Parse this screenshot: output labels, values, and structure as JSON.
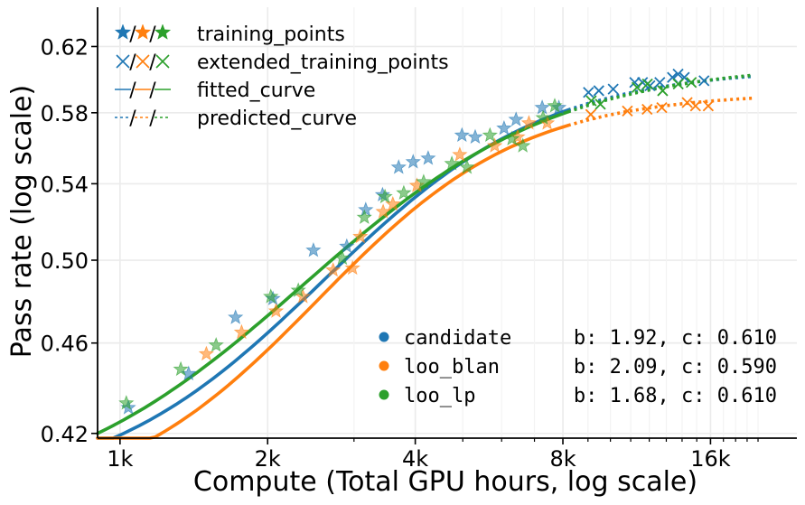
{
  "chart_data": {
    "type": "scatter",
    "xlabel": "Compute (Total GPU hours, log scale)",
    "ylabel": "Pass rate (log scale)",
    "xscale": "log",
    "yscale": "log",
    "xlim": [
      900,
      24000
    ],
    "ylim": [
      0.418,
      0.645
    ],
    "x_ticks": [
      {
        "value": 1000,
        "label": "1k"
      },
      {
        "value": 2000,
        "label": "2k"
      },
      {
        "value": 4000,
        "label": "4k"
      },
      {
        "value": 8000,
        "label": "8k"
      },
      {
        "value": 16000,
        "label": "16k"
      }
    ],
    "y_ticks": [
      {
        "value": 0.42,
        "label": "0.42"
      },
      {
        "value": 0.46,
        "label": "0.46"
      },
      {
        "value": 0.5,
        "label": "0.50"
      },
      {
        "value": 0.54,
        "label": "0.54"
      },
      {
        "value": 0.58,
        "label": "0.58"
      },
      {
        "value": 0.62,
        "label": "0.62"
      }
    ],
    "grid": true,
    "legend_marker_key": {
      "position": "top-left",
      "entries": [
        {
          "label": "training_points",
          "marker": "star"
        },
        {
          "label": "extended_training_points",
          "marker": "x"
        },
        {
          "label": "fitted_curve",
          "marker": "solid-line"
        },
        {
          "label": "predicted_curve",
          "marker": "dashed-line"
        }
      ]
    },
    "legend_series_position": "bottom-right",
    "series": [
      {
        "name": "candidate",
        "fit_params": "b: 1.92, c: 0.610",
        "color": "#1f77b4",
        "training_points": [
          [
            1040,
            0.431
          ],
          [
            1380,
            0.446
          ],
          [
            1720,
            0.472
          ],
          [
            2050,
            0.481
          ],
          [
            2480,
            0.505
          ],
          [
            2900,
            0.507
          ],
          [
            3170,
            0.526
          ],
          [
            3430,
            0.534
          ],
          [
            3700,
            0.549
          ],
          [
            3960,
            0.552
          ],
          [
            4250,
            0.554
          ],
          [
            4980,
            0.567
          ],
          [
            5300,
            0.566
          ],
          [
            6070,
            0.571
          ],
          [
            6420,
            0.576
          ],
          [
            7260,
            0.583
          ],
          [
            7850,
            0.583
          ]
        ],
        "extended_training_points": [
          [
            9020,
            0.592
          ],
          [
            9470,
            0.593
          ],
          [
            10130,
            0.594
          ],
          [
            11210,
            0.598
          ],
          [
            11630,
            0.598
          ],
          [
            12040,
            0.596
          ],
          [
            12610,
            0.598
          ],
          [
            13380,
            0.601
          ],
          [
            13740,
            0.603
          ],
          [
            14150,
            0.601
          ],
          [
            15520,
            0.599
          ]
        ],
        "fitted_curve_x": [
          900,
          8200
        ],
        "predicted_curve_x": [
          8200,
          19500
        ]
      },
      {
        "name": "loo_blan",
        "fit_params": "b: 2.09, c: 0.590",
        "color": "#ff7f0e",
        "training_points": [
          [
            1500,
            0.455
          ],
          [
            1770,
            0.465
          ],
          [
            2080,
            0.475
          ],
          [
            2360,
            0.482
          ],
          [
            2720,
            0.495
          ],
          [
            2980,
            0.496
          ],
          [
            3090,
            0.512
          ],
          [
            3440,
            0.525
          ],
          [
            3600,
            0.529
          ],
          [
            4030,
            0.539
          ],
          [
            4930,
            0.556
          ],
          [
            5810,
            0.561
          ],
          [
            6470,
            0.566
          ],
          [
            6820,
            0.574
          ],
          [
            7430,
            0.574
          ]
        ],
        "extended_training_points": [
          [
            9120,
            0.579
          ],
          [
            10830,
            0.581
          ],
          [
            11880,
            0.582
          ],
          [
            12730,
            0.583
          ],
          [
            14340,
            0.586
          ],
          [
            14910,
            0.584
          ],
          [
            15830,
            0.584
          ]
        ],
        "fitted_curve_x": [
          900,
          8200
        ],
        "predicted_curve_x": [
          8200,
          19500
        ]
      },
      {
        "name": "loo_lp",
        "fit_params": "b: 1.68, c: 0.610",
        "color": "#2ca02c",
        "training_points": [
          [
            1030,
            0.433
          ],
          [
            1330,
            0.448
          ],
          [
            1570,
            0.459
          ],
          [
            2030,
            0.482
          ],
          [
            2310,
            0.485
          ],
          [
            2840,
            0.501
          ],
          [
            3150,
            0.522
          ],
          [
            3470,
            0.533
          ],
          [
            3790,
            0.535
          ],
          [
            4160,
            0.541
          ],
          [
            4750,
            0.551
          ],
          [
            5100,
            0.549
          ],
          [
            5680,
            0.567
          ],
          [
            6300,
            0.565
          ],
          [
            6630,
            0.561
          ],
          [
            7290,
            0.577
          ],
          [
            7700,
            0.584
          ]
        ],
        "extended_training_points": [
          [
            9140,
            0.587
          ],
          [
            9540,
            0.585
          ],
          [
            11330,
            0.595
          ],
          [
            11900,
            0.597
          ],
          [
            12780,
            0.593
          ],
          [
            13750,
            0.597
          ],
          [
            14620,
            0.598
          ]
        ],
        "fitted_curve_x": [
          900,
          8200
        ],
        "predicted_curve_x": [
          8200,
          19500
        ]
      }
    ]
  }
}
